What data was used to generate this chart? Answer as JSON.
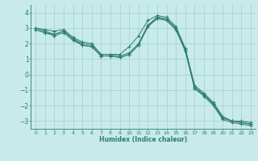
{
  "xlabel": "Humidex (Indice chaleur)",
  "ylabel": "",
  "background_color": "#c8eaea",
  "grid_color": "#aad4d4",
  "line_color": "#2d7d6e",
  "xlim": [
    -0.5,
    23.5
  ],
  "ylim": [
    -3.5,
    4.5
  ],
  "yticks": [
    -3,
    -2,
    -1,
    0,
    1,
    2,
    3,
    4
  ],
  "xticks": [
    0,
    1,
    2,
    3,
    4,
    5,
    6,
    7,
    8,
    9,
    10,
    11,
    12,
    13,
    14,
    15,
    16,
    17,
    18,
    19,
    20,
    21,
    22,
    23
  ],
  "series": [
    [
      3.0,
      2.9,
      2.8,
      2.9,
      2.4,
      2.1,
      2.0,
      1.3,
      1.3,
      1.3,
      1.8,
      2.5,
      3.5,
      3.8,
      3.7,
      3.1,
      1.7,
      -0.7,
      -1.2,
      -1.8,
      -2.7,
      -3.0,
      -3.0,
      -3.1
    ],
    [
      3.0,
      2.8,
      2.6,
      2.8,
      2.3,
      2.0,
      1.9,
      1.3,
      1.3,
      1.2,
      1.4,
      2.0,
      3.2,
      3.7,
      3.6,
      3.0,
      1.6,
      -0.8,
      -1.3,
      -1.9,
      -2.8,
      -3.0,
      -3.1,
      -3.2
    ],
    [
      2.9,
      2.7,
      2.5,
      2.7,
      2.2,
      1.9,
      1.8,
      1.2,
      1.2,
      1.1,
      1.3,
      1.9,
      3.1,
      3.6,
      3.5,
      2.9,
      1.5,
      -0.9,
      -1.4,
      -2.0,
      -2.9,
      -3.1,
      -3.2,
      -3.3
    ],
    [
      2.9,
      2.7,
      2.6,
      2.8,
      2.3,
      1.9,
      1.8,
      1.2,
      1.2,
      1.1,
      1.3,
      1.9,
      3.1,
      3.7,
      3.5,
      2.9,
      1.6,
      -0.9,
      -1.3,
      -1.9,
      -2.8,
      -3.0,
      -3.1,
      -3.2
    ]
  ]
}
